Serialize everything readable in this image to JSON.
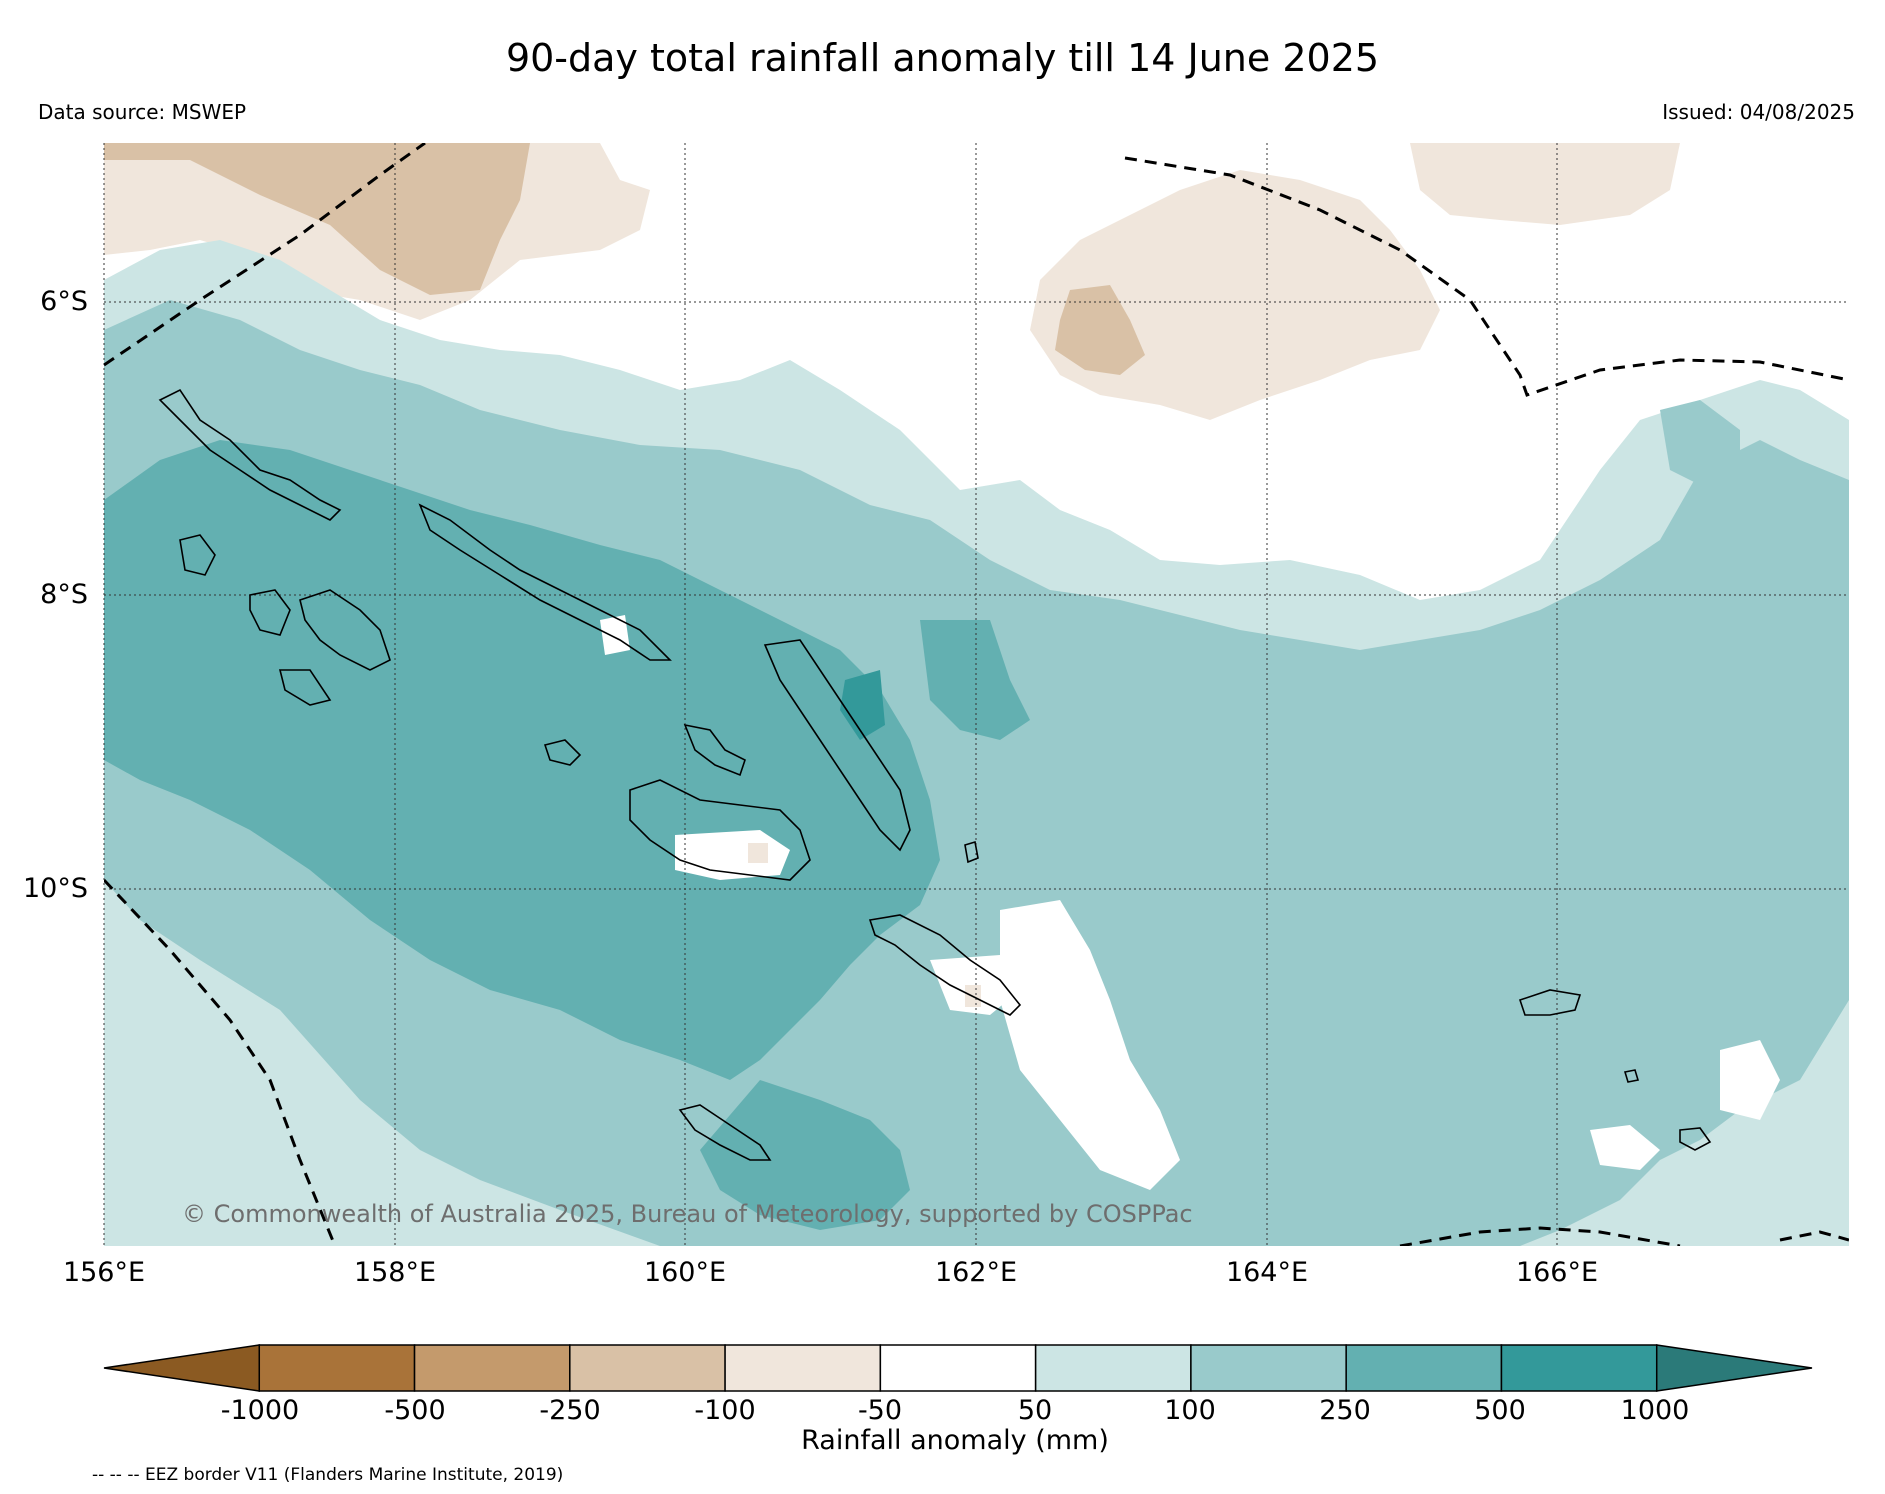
{
  "header": {
    "title": "90-day total rainfall anomaly till 14 June 2025",
    "data_source": "Data source: MSWEP",
    "issued": "Issued: 04/08/2025"
  },
  "map": {
    "extent": {
      "lon_min": 156.0,
      "lon_max": 168.0,
      "lat_min": -12.4,
      "lat_max": -5.0
    },
    "latitude_labels": [
      "6°S",
      "8°S",
      "10°S"
    ],
    "longitude_labels": [
      "156°E",
      "158°E",
      "160°E",
      "162°E",
      "164°E",
      "166°E"
    ],
    "gridlines": "dotted",
    "credit": "© Commonwealth of Australia 2025, Bureau of Meteorology, supported by COSPPac"
  },
  "colorbar": {
    "title": "Rainfall anomaly (mm)",
    "tick_labels": [
      "-1000",
      "-500",
      "-250",
      "-100",
      "-50",
      "50",
      "100",
      "250",
      "500",
      "1000"
    ],
    "colors": [
      "#8b5a22",
      "#a97339",
      "#c49a6c",
      "#d9c1a6",
      "#f0e6dc",
      "#ffffff",
      "#cce5e4",
      "#99cacb",
      "#63b0b1",
      "#33999a",
      "#2b7a79"
    ],
    "extend": "both"
  },
  "legend": {
    "eez_note": "-- -- -- EEZ border V11 (Flanders Marine Institute, 2019)"
  },
  "palette": {
    "dry_light": "#f0e6dc",
    "dry_mid": "#d9c1a6",
    "wet_50": "#cce5e4",
    "wet_100": "#99cacb",
    "wet_250": "#63b0b1",
    "wet_500": "#33999a"
  }
}
